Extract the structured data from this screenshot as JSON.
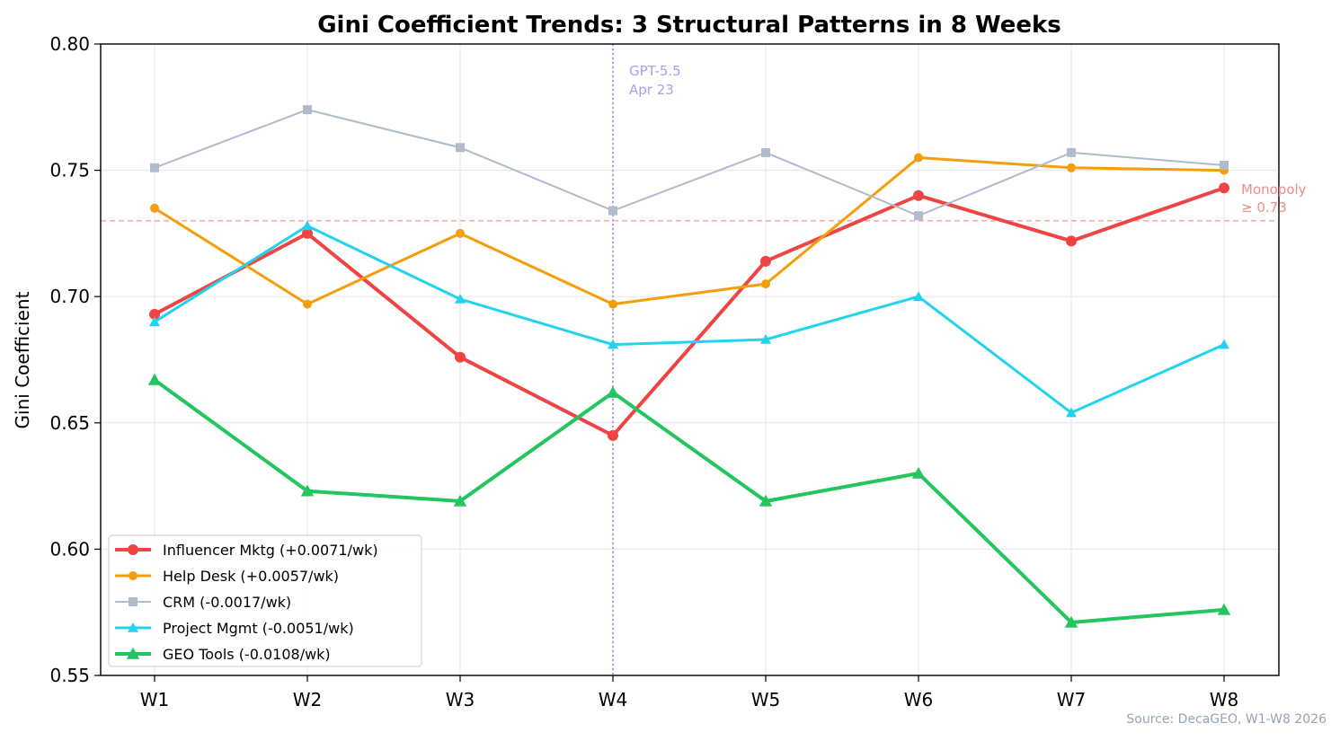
{
  "chart_data": {
    "type": "line",
    "title": "Gini Coefficient Trends: 3 Structural Patterns in 8 Weeks",
    "xlabel": "",
    "ylabel": "Gini Coefficient",
    "categories": [
      "W1",
      "W2",
      "W3",
      "W4",
      "W5",
      "W6",
      "W7",
      "W8"
    ],
    "ylim": [
      0.55,
      0.8
    ],
    "yticks": [
      "0.55",
      "0.60",
      "0.65",
      "0.70",
      "0.75",
      "0.80"
    ],
    "grid": true,
    "legend_position": "bottom-left",
    "series": [
      {
        "name": "Influencer Mktg (+0.0071/wk)",
        "color": "#ef4444",
        "marker": "circle",
        "line_weight": "thick",
        "values": [
          0.693,
          0.725,
          0.676,
          0.645,
          0.714,
          0.74,
          0.722,
          0.743
        ]
      },
      {
        "name": "Help Desk (+0.0057/wk)",
        "color": "#f59e0b",
        "marker": "circle",
        "line_weight": "medium",
        "values": [
          0.735,
          0.697,
          0.725,
          0.697,
          0.705,
          0.755,
          0.751,
          0.75
        ]
      },
      {
        "name": "CRM (-0.0017/wk)",
        "color": "#b0bccd",
        "marker": "square",
        "line_weight": "thin",
        "values": [
          0.751,
          0.774,
          0.759,
          0.734,
          0.757,
          0.732,
          0.757,
          0.752
        ]
      },
      {
        "name": "Project Mgmt (-0.0051/wk)",
        "color": "#22d3ee",
        "marker": "triangle",
        "line_weight": "medium",
        "values": [
          0.69,
          0.728,
          0.699,
          0.681,
          0.683,
          0.7,
          0.654,
          0.681
        ]
      },
      {
        "name": "GEO Tools (-0.0108/wk)",
        "color": "#22c55e",
        "marker": "triangle",
        "line_weight": "thick",
        "values": [
          0.667,
          0.623,
          0.619,
          0.662,
          0.619,
          0.63,
          0.571,
          0.576
        ]
      }
    ],
    "annotations": {
      "event_line": {
        "x": "W4",
        "label_line1": "GPT-5.5",
        "label_line2": "Apr 23",
        "color": "#a5a3e8"
      },
      "threshold_line": {
        "y": 0.73,
        "label_line1": "Monopoly",
        "label_line2": "≥ 0.73",
        "color": "#f28b8b"
      }
    },
    "source_note": "Source: DecaGEO, W1-W8 2026"
  }
}
